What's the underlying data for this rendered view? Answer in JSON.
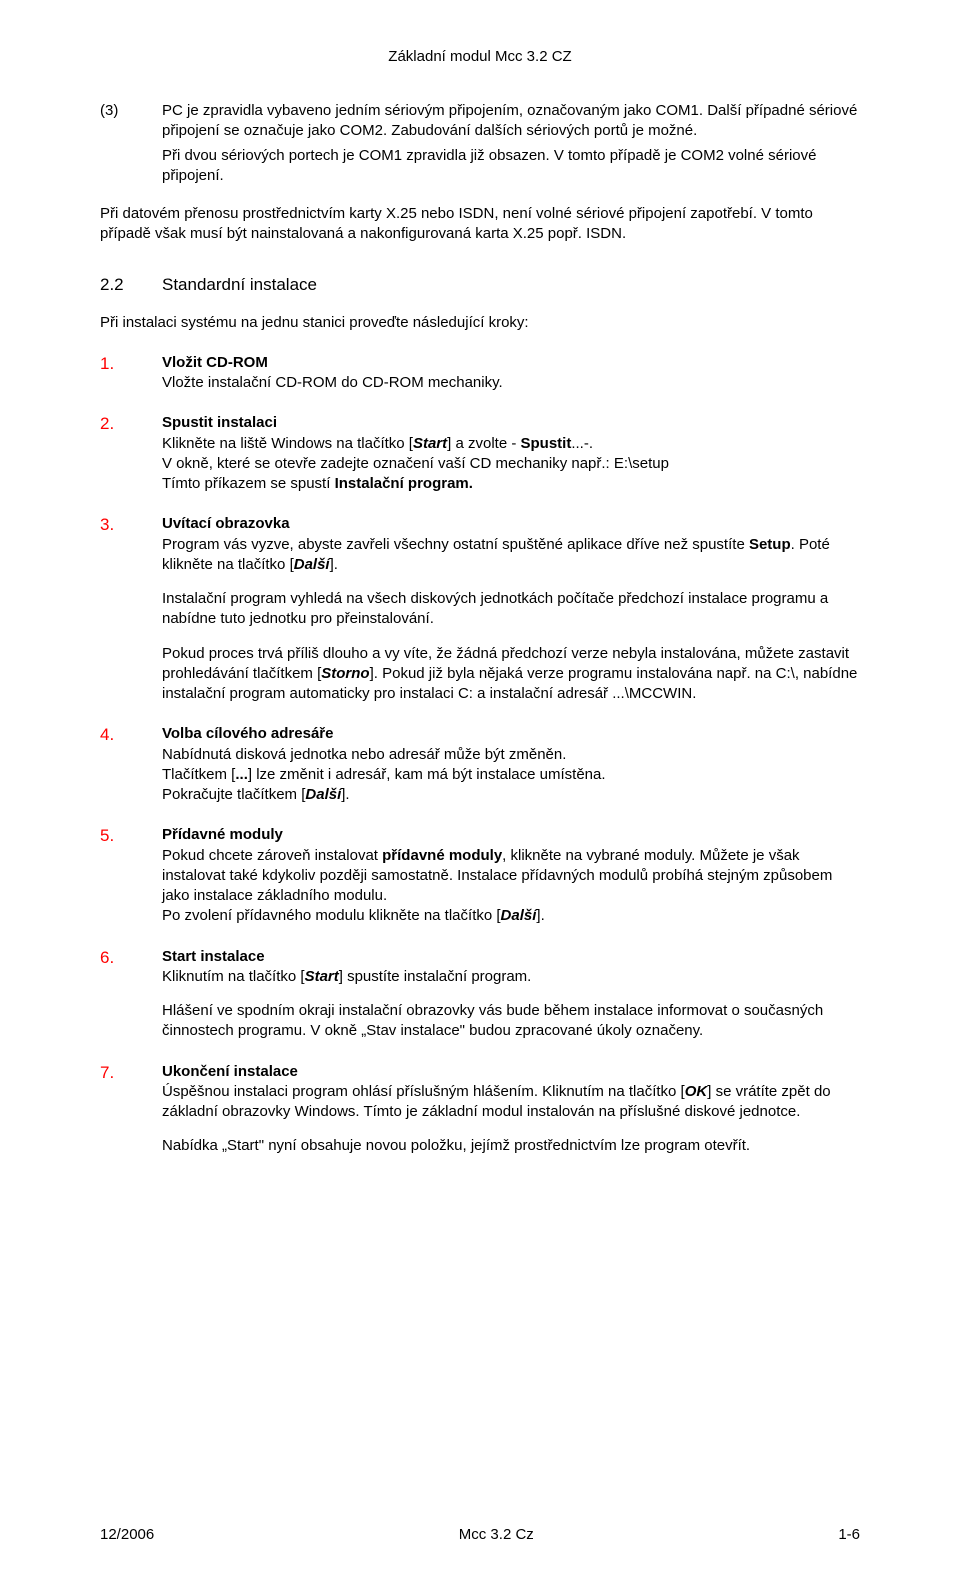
{
  "doc": {
    "header": "Základní modul Mcc 3.2 CZ",
    "footer_left": "12/2006",
    "footer_center": "Mcc 3.2 Cz",
    "footer_right": "1-6",
    "colors": {
      "text": "#000000",
      "accent_red": "#ff0000",
      "background": "#ffffff"
    },
    "typography": {
      "body_font": "Arial",
      "body_size_pt": 11,
      "heading_size_pt": 13,
      "stepnum_size_pt": 13
    },
    "numbered_block": {
      "num": "(3)",
      "p1": "PC je zpravidla vybaveno jedním sériovým připojením, označovaným jako COM1. Další případné sériové připojení se označuje jako COM2. Zabudování dalších sériových portů je možné.",
      "p2": "Při dvou sériových portech je COM1 zpravidla již obsazen. V tomto případě je COM2 volné sériové připojení."
    },
    "free_para": "Při datovém přenosu prostřednictvím karty X.25 nebo ISDN, není volné sériové připojení zapotřebí. V tomto případě však musí být nainstalovaná a nakonfigurovaná karta X.25 popř. ISDN.",
    "section": {
      "num": "2.2",
      "title": "Standardní instalace"
    },
    "section_intro": "Při instalaci systému na jednu stanici proveďte následující kroky:",
    "steps": [
      {
        "n": "1.",
        "title": "Vložit CD-ROM",
        "body": "Vložte instalační CD-ROM do CD-ROM mechaniky."
      },
      {
        "n": "2.",
        "title": "Spustit instalaci",
        "body_html": "Klikněte na liště Windows na tlačítko [<b><i>Start</i></b>]  a zvolte - <b>Spustit</b>...-.<br>V okně, které se otevře zadejte označení vaší CD mechaniky např.: E:\\setup<br>Tímto příkazem se spustí <b>Instalační program.</b>"
      },
      {
        "n": "3.",
        "title": "Uvítací obrazovka",
        "body_html": "Program vás vyzve, abyste zavřeli všechny ostatní spuštěné aplikace dříve než spustíte <b>Setup</b>. Poté klikněte na tlačítko [<b><i>Další</i></b>].",
        "sub": [
          "Instalační program vyhledá na všech diskových jednotkách počítače předchozí instalace programu a nabídne tuto jednotku pro přeinstalování.",
          "Pokud proces trvá příliš dlouho a vy víte, že žádná předchozí verze nebyla instalována, můžete zastavit prohledávání tlačítkem [<b><i>Storno</i></b>]. Pokud již byla nějaká verze programu instalována např. na C:\\, nabídne instalační program automaticky pro instalaci C: a instalační adresář ...\\MCCWIN."
        ]
      },
      {
        "n": "4.",
        "title": "Volba cílového adresáře",
        "body_html": "Nabídnutá disková jednotka nebo adresář může být změněn.<br>Tlačítkem [<b>...</b>] lze změnit i adresář, kam má být instalace umístěna.<br>Pokračujte tlačítkem [<b><i>Další</i></b>]."
      },
      {
        "n": "5.",
        "title": "Přídavné moduly",
        "body_html": "Pokud chcete zároveň instalovat <b>přídavné moduly</b>, klikněte na vybrané moduly. Můžete je však instalovat také kdykoliv později samostatně. Instalace přídavných modulů probíhá stejným způsobem jako instalace základního modulu.<br>Po zvolení přídavného modulu klikněte na tlačítko [<b><i>Další</i></b>]."
      },
      {
        "n": "6.",
        "title": "Start instalace",
        "body_html": "Kliknutím na tlačítko [<b><i>Start</i></b>] spustíte instalační program.",
        "sub": [
          "Hlášení ve spodním okraji instalační obrazovky vás bude během instalace informovat o současných činnostech programu. V okně „Stav instalace\" budou zpracované úkoly označeny."
        ]
      },
      {
        "n": "7.",
        "title": "Ukončení instalace",
        "body_html": "Úspěšnou instalaci program ohlásí příslušným hlášením. Kliknutím na tlačítko [<b><i>OK</i></b>] se vrátíte zpět do základní obrazovky Windows. Tímto je základní modul instalován na příslušné diskové jednotce.",
        "sub": [
          "Nabídka „Start\" nyní obsahuje novou položku, jejímž prostřednictvím lze program otevřít."
        ]
      }
    ]
  }
}
